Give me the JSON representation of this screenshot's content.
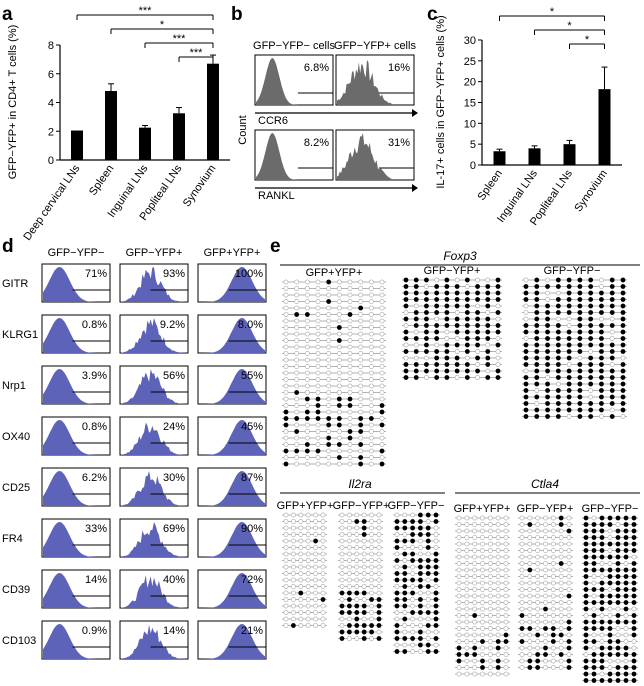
{
  "chart_data": [
    {
      "panel": "a",
      "type": "bar",
      "ylabel": "GFP−YFP+ in CD4+ T cells (%)",
      "ylim": [
        0,
        8
      ],
      "yticks": [
        0,
        2,
        4,
        6,
        8
      ],
      "categories": [
        "Deep cervical LNs",
        "Spleen",
        "Inguinal LNs",
        "Popliteal LNs",
        "Synovium"
      ],
      "values": [
        2.05,
        4.8,
        2.25,
        3.25,
        6.7
      ],
      "errors": [
        0,
        0.5,
        0.15,
        0.4,
        0.6
      ],
      "brackets": [
        {
          "from": 0,
          "to": 4,
          "label": "***"
        },
        {
          "from": 1,
          "to": 4,
          "label": "*"
        },
        {
          "from": 2,
          "to": 4,
          "label": "***"
        },
        {
          "from": 3,
          "to": 4,
          "label": "***"
        }
      ]
    },
    {
      "panel": "b",
      "type": "histogram-grid",
      "columns": [
        "GFP−YFP− cells",
        "GFP−YFP+ cells"
      ],
      "rows": [
        {
          "marker": "CCR6",
          "values": [
            "6.8%",
            "16%"
          ]
        },
        {
          "marker": "RANKL",
          "values": [
            "8.2%",
            "31%"
          ]
        }
      ],
      "ylabel": "Count"
    },
    {
      "panel": "c",
      "type": "bar",
      "ylabel": "IL-17+ cells in GFP−YFP+ cells (%)",
      "ylim": [
        0,
        30
      ],
      "yticks": [
        0,
        5,
        10,
        15,
        20,
        25,
        30
      ],
      "categories": [
        "Spleen",
        "Inguinal LNs",
        "Popliteal LNs",
        "Synovium"
      ],
      "values": [
        3.3,
        4.0,
        5.0,
        18.2
      ],
      "errors": [
        0.5,
        0.6,
        0.9,
        5.3
      ],
      "brackets": [
        {
          "from": 0,
          "to": 3,
          "label": "*"
        },
        {
          "from": 1,
          "to": 3,
          "label": "*"
        },
        {
          "from": 2,
          "to": 3,
          "label": "*"
        }
      ]
    },
    {
      "panel": "d",
      "type": "histogram-grid",
      "columns": [
        "GFP−YFP−",
        "GFP−YFP+",
        "GFP+YFP+"
      ],
      "rows": [
        {
          "marker": "GITR",
          "values": [
            "71%",
            "93%",
            "100%"
          ]
        },
        {
          "marker": "KLRG1",
          "values": [
            "0.8%",
            "9.2%",
            "8.0%"
          ]
        },
        {
          "marker": "Nrp1",
          "values": [
            "3.9%",
            "56%",
            "55%"
          ]
        },
        {
          "marker": "OX40",
          "values": [
            "0.8%",
            "24%",
            "45%"
          ]
        },
        {
          "marker": "CD25",
          "values": [
            "6.2%",
            "30%",
            "87%"
          ]
        },
        {
          "marker": "FR4",
          "values": [
            "33%",
            "69%",
            "90%"
          ]
        },
        {
          "marker": "CD39",
          "values": [
            "14%",
            "40%",
            "72%"
          ]
        },
        {
          "marker": "CD103",
          "values": [
            "0.9%",
            "14%",
            "21%"
          ]
        }
      ]
    },
    {
      "panel": "e",
      "type": "methylation-grid",
      "genes": [
        {
          "gene": "Foxp3",
          "groups": [
            "GFP+YFP+",
            "GFP−YFP+",
            "GFP−YFP−"
          ]
        },
        {
          "gene": "Il2ra",
          "groups": [
            "GFP+YFP+",
            "GFP−YFP+",
            "GFP−YFP−"
          ]
        },
        {
          "gene": "Ctla4",
          "groups": [
            "GFP+YFP+",
            "GFP−YFP+",
            "GFP−YFP−"
          ]
        }
      ]
    }
  ],
  "panel_letters": {
    "a": "a",
    "b": "b",
    "c": "c",
    "d": "d",
    "e": "e"
  },
  "colors": {
    "bar": "#000000",
    "hist_fill": "#5c63b8",
    "hist_gray": "#6b6b6b",
    "line": "#000000"
  }
}
